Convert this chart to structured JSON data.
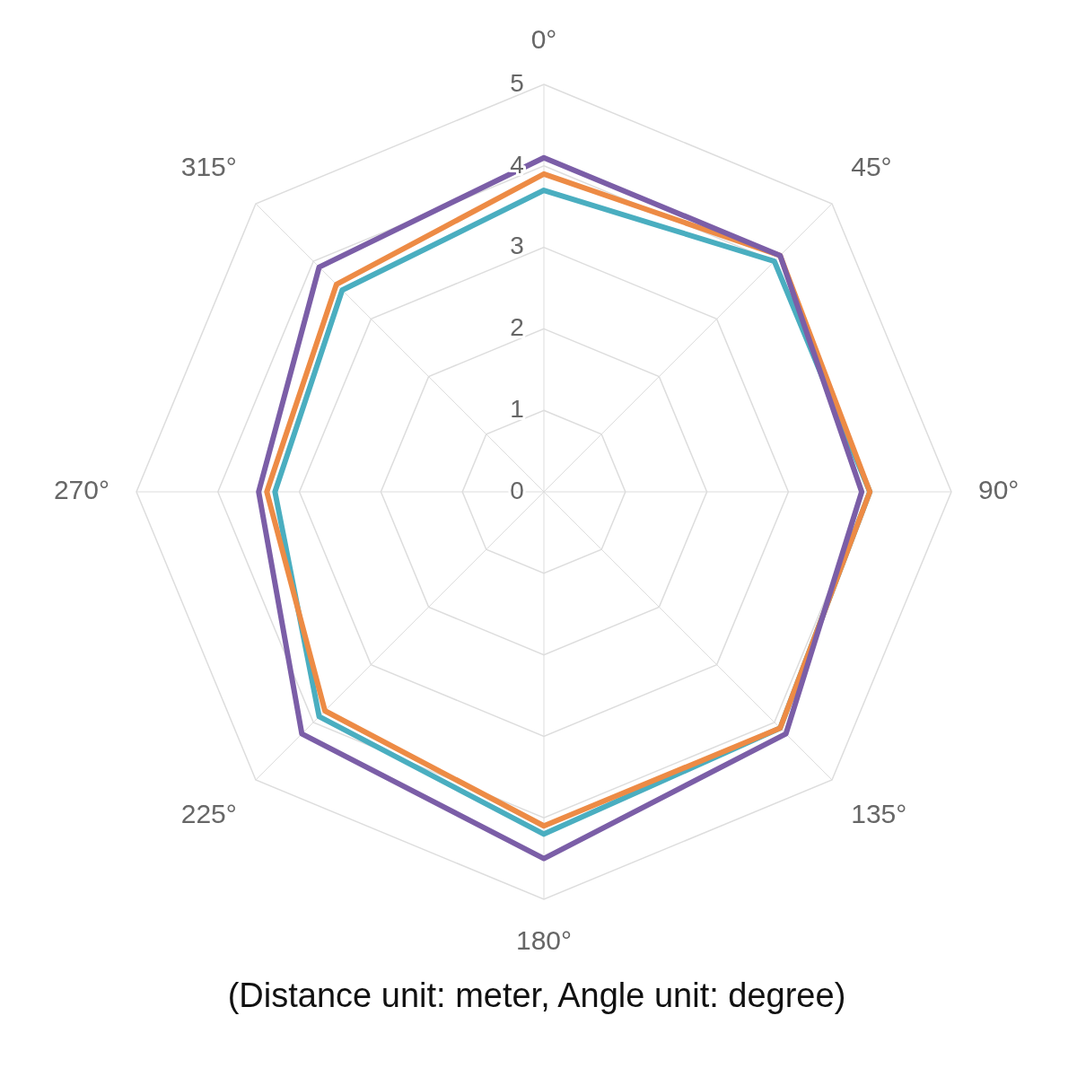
{
  "chart_data": {
    "type": "radar",
    "categories": [
      "0°",
      "45°",
      "90°",
      "135°",
      "180°",
      "225°",
      "270°",
      "315°"
    ],
    "series": [
      {
        "color": "#7b5ea7",
        "values": [
          4.1,
          4.1,
          3.9,
          4.2,
          4.5,
          4.2,
          3.5,
          3.9
        ]
      },
      {
        "color": "#ed8b45",
        "values": [
          3.9,
          4.1,
          4.0,
          4.1,
          4.1,
          3.8,
          3.4,
          3.6
        ]
      },
      {
        "color": "#4aaec0",
        "values": [
          3.7,
          4.0,
          4.0,
          4.1,
          4.2,
          3.9,
          3.3,
          3.5
        ]
      }
    ],
    "ylim": [
      0,
      5
    ],
    "yticks": [
      0,
      1,
      2,
      3,
      4,
      5
    ],
    "grid": true,
    "legend": false,
    "marker": "none",
    "annotations": [
      "(Distance unit: meter, Angle unit: degree)"
    ]
  }
}
